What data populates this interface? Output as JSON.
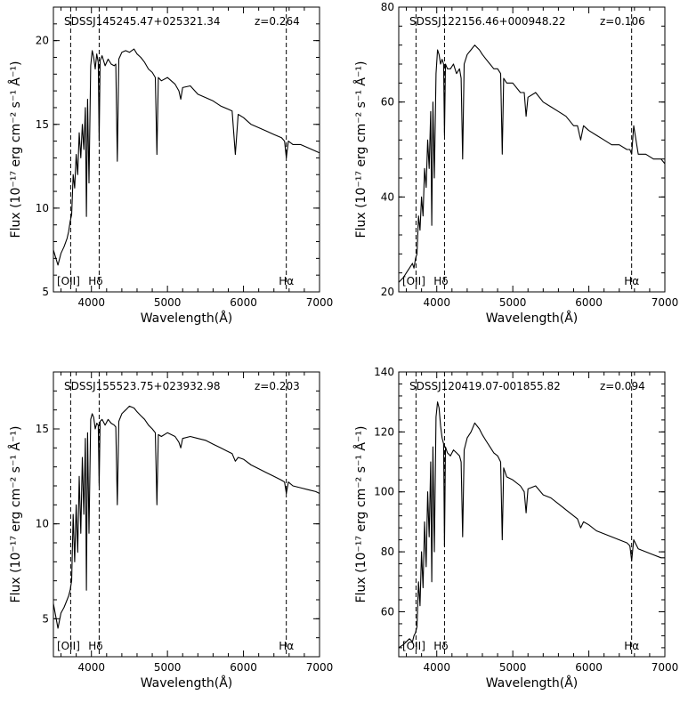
{
  "figure": {
    "xlabel": "Wavelength(Å)",
    "ylabel": "Flux (10⁻¹⁷ erg cm⁻² s⁻¹ Å⁻¹)"
  },
  "chart_data": [
    {
      "type": "line",
      "title": "SDSSJ145245.47+025321.34",
      "redshift": "z=0.264",
      "xlabel": "Wavelength(Å)",
      "ylabel": "Flux (10⁻¹⁷ erg cm⁻² s⁻¹ Å⁻¹)",
      "xlim": [
        3500,
        7000
      ],
      "ylim": [
        5,
        22
      ],
      "xticks": [
        4000,
        5000,
        6000,
        7000
      ],
      "yticks": [
        5,
        10,
        15,
        20
      ],
      "line_markers": [
        {
          "label": "[OII]",
          "x": 3727
        },
        {
          "label": "Hδ",
          "x": 4102
        },
        {
          "label": "Hα",
          "x": 6563
        }
      ],
      "series": [
        {
          "x": [
            3500,
            3560,
            3600,
            3640,
            3680,
            3700,
            3720,
            3740,
            3760,
            3780,
            3800,
            3820,
            3840,
            3860,
            3880,
            3900,
            3920,
            3934,
            3950,
            3968,
            3990,
            4010,
            4030,
            4050,
            4070,
            4090,
            4102,
            4115,
            4140,
            4180,
            4220,
            4260,
            4300,
            4320,
            4340,
            4360,
            4400,
            4450,
            4500,
            4560,
            4600,
            4650,
            4700,
            4750,
            4800,
            4840,
            4861,
            4880,
            4920,
            5000,
            5100,
            5150,
            5175,
            5200,
            5300,
            5400,
            5500,
            5600,
            5700,
            5800,
            5850,
            5893,
            5930,
            6000,
            6100,
            6200,
            6300,
            6400,
            6500,
            6540,
            6563,
            6590,
            6650,
            6750,
            6850,
            6950,
            7000
          ],
          "y": [
            7.5,
            6.6,
            7.3,
            7.7,
            8.2,
            8.6,
            9.2,
            9.6,
            12.0,
            11.2,
            13.2,
            12.0,
            14.5,
            13.0,
            15.0,
            13.5,
            16.0,
            9.5,
            16.5,
            11.5,
            18.5,
            19.4,
            19.0,
            18.3,
            19.2,
            18.7,
            14.0,
            18.8,
            19.1,
            18.5,
            18.9,
            18.6,
            18.5,
            18.6,
            12.8,
            18.9,
            19.3,
            19.4,
            19.3,
            19.5,
            19.2,
            19.0,
            18.7,
            18.3,
            18.1,
            17.8,
            13.2,
            17.8,
            17.6,
            17.8,
            17.4,
            17.0,
            16.5,
            17.2,
            17.3,
            16.8,
            16.6,
            16.4,
            16.1,
            15.9,
            15.8,
            13.2,
            15.6,
            15.4,
            15.0,
            14.8,
            14.6,
            14.4,
            14.2,
            14.0,
            13.0,
            14.0,
            13.8,
            13.8,
            13.6,
            13.4,
            13.3
          ]
        }
      ]
    },
    {
      "type": "line",
      "title": "SDSSJ122156.46+000948.22",
      "redshift": "z=0.106",
      "xlabel": "Wavelength(Å)",
      "ylabel": "Flux (10⁻¹⁷ erg cm⁻² s⁻¹ Å⁻¹)",
      "xlim": [
        3500,
        7000
      ],
      "ylim": [
        20,
        80
      ],
      "xticks": [
        4000,
        5000,
        6000,
        7000
      ],
      "yticks": [
        20,
        40,
        60,
        80
      ],
      "line_markers": [
        {
          "label": "[OII]",
          "x": 3727
        },
        {
          "label": "Hδ",
          "x": 4102
        },
        {
          "label": "Hα",
          "x": 6563
        }
      ],
      "series": [
        {
          "x": [
            3500,
            3560,
            3600,
            3640,
            3680,
            3700,
            3720,
            3740,
            3760,
            3780,
            3800,
            3820,
            3840,
            3860,
            3880,
            3900,
            3920,
            3934,
            3950,
            3968,
            3990,
            4010,
            4030,
            4050,
            4070,
            4090,
            4102,
            4115,
            4140,
            4180,
            4220,
            4260,
            4300,
            4320,
            4340,
            4360,
            4400,
            4450,
            4500,
            4560,
            4600,
            4650,
            4700,
            4750,
            4800,
            4840,
            4861,
            4880,
            4920,
            5000,
            5100,
            5150,
            5175,
            5200,
            5300,
            5400,
            5500,
            5600,
            5700,
            5800,
            5850,
            5893,
            5930,
            6000,
            6100,
            6200,
            6300,
            6400,
            6500,
            6540,
            6563,
            6590,
            6650,
            6750,
            6850,
            6950,
            7000
          ],
          "y": [
            22,
            23,
            24,
            25,
            26,
            25,
            27,
            28,
            36,
            33,
            40,
            36,
            46,
            42,
            52,
            46,
            58,
            34,
            60,
            44,
            66,
            71,
            70,
            68,
            69,
            68,
            53,
            68,
            67,
            67,
            68,
            66,
            67,
            65,
            48,
            68,
            70,
            71,
            72,
            71,
            70,
            69,
            68,
            67,
            67,
            66,
            49,
            65,
            64,
            64,
            62,
            62,
            57,
            61,
            62,
            60,
            59,
            58,
            57,
            55,
            55,
            52,
            55,
            54,
            53,
            52,
            51,
            51,
            50,
            50,
            49,
            55,
            49,
            49,
            48,
            48,
            47
          ]
        }
      ]
    },
    {
      "type": "line",
      "title": "SDSSJ155523.75+023932.98",
      "redshift": "z=0.203",
      "xlabel": "Wavelength(Å)",
      "ylabel": "Flux (10⁻¹⁷ erg cm⁻² s⁻¹ Å⁻¹)",
      "xlim": [
        3500,
        7000
      ],
      "ylim": [
        3,
        18
      ],
      "xticks": [
        4000,
        5000,
        6000,
        7000
      ],
      "yticks": [
        5,
        10,
        15
      ],
      "line_markers": [
        {
          "label": "[OII]",
          "x": 3727
        },
        {
          "label": "Hδ",
          "x": 4102
        },
        {
          "label": "Hα",
          "x": 6563
        }
      ],
      "series": [
        {
          "x": [
            3500,
            3560,
            3600,
            3640,
            3680,
            3700,
            3720,
            3740,
            3760,
            3780,
            3800,
            3820,
            3840,
            3860,
            3880,
            3900,
            3920,
            3934,
            3950,
            3968,
            3990,
            4010,
            4030,
            4050,
            4070,
            4090,
            4102,
            4115,
            4140,
            4180,
            4220,
            4260,
            4300,
            4320,
            4340,
            4360,
            4400,
            4450,
            4500,
            4560,
            4600,
            4650,
            4700,
            4750,
            4800,
            4840,
            4861,
            4880,
            4920,
            5000,
            5100,
            5150,
            5175,
            5200,
            5300,
            5400,
            5500,
            5600,
            5700,
            5800,
            5850,
            5893,
            5930,
            6000,
            6100,
            6200,
            6300,
            6400,
            6500,
            6540,
            6563,
            6590,
            6650,
            6750,
            6850,
            6950,
            7000
          ],
          "y": [
            5.8,
            4.5,
            5.3,
            5.6,
            6.0,
            6.2,
            6.5,
            7.0,
            10.5,
            8.0,
            11.0,
            8.5,
            12.5,
            9.5,
            13.5,
            10.5,
            14.5,
            6.5,
            14.8,
            9.5,
            15.5,
            15.8,
            15.6,
            15.0,
            15.3,
            15.2,
            12.0,
            15.4,
            15.5,
            15.2,
            15.5,
            15.3,
            15.2,
            15.1,
            11.0,
            15.4,
            15.8,
            16.0,
            16.2,
            16.1,
            15.9,
            15.7,
            15.5,
            15.2,
            15.0,
            14.8,
            11.0,
            14.7,
            14.6,
            14.8,
            14.6,
            14.3,
            14.0,
            14.5,
            14.6,
            14.5,
            14.4,
            14.2,
            14.0,
            13.8,
            13.7,
            13.3,
            13.5,
            13.4,
            13.1,
            12.9,
            12.7,
            12.5,
            12.3,
            12.2,
            11.6,
            12.2,
            12.0,
            11.9,
            11.8,
            11.7,
            11.6
          ]
        }
      ]
    },
    {
      "type": "line",
      "title": "SDSSJ120419.07-001855.82",
      "redshift": "z=0.094",
      "xlabel": "Wavelength(Å)",
      "ylabel": "Flux (10⁻¹⁷ erg cm⁻² s⁻¹ Å⁻¹)",
      "xlim": [
        3500,
        7000
      ],
      "ylim": [
        45,
        140
      ],
      "xticks": [
        4000,
        5000,
        6000,
        7000
      ],
      "yticks": [
        60,
        80,
        100,
        120,
        140
      ],
      "line_markers": [
        {
          "label": "[OII]",
          "x": 3727
        },
        {
          "label": "Hδ",
          "x": 4102
        },
        {
          "label": "Hα",
          "x": 6563
        }
      ],
      "series": [
        {
          "x": [
            3500,
            3560,
            3600,
            3640,
            3680,
            3700,
            3720,
            3740,
            3760,
            3780,
            3800,
            3820,
            3840,
            3860,
            3880,
            3900,
            3920,
            3934,
            3950,
            3968,
            3990,
            4010,
            4030,
            4050,
            4070,
            4090,
            4102,
            4115,
            4140,
            4180,
            4220,
            4260,
            4300,
            4320,
            4340,
            4360,
            4400,
            4450,
            4500,
            4560,
            4600,
            4650,
            4700,
            4750,
            4800,
            4840,
            4861,
            4880,
            4920,
            5000,
            5100,
            5150,
            5175,
            5200,
            5300,
            5400,
            5500,
            5600,
            5700,
            5800,
            5850,
            5893,
            5930,
            6000,
            6100,
            6200,
            6300,
            6400,
            6500,
            6540,
            6563,
            6590,
            6650,
            6750,
            6850,
            6950,
            7000
          ],
          "y": [
            48,
            49,
            50,
            51,
            50,
            52,
            53,
            55,
            70,
            62,
            80,
            68,
            90,
            75,
            100,
            85,
            110,
            70,
            115,
            80,
            125,
            130,
            128,
            122,
            118,
            116,
            82,
            115,
            113,
            112,
            114,
            113,
            112,
            110,
            85,
            114,
            118,
            120,
            123,
            121,
            119,
            117,
            115,
            113,
            112,
            110,
            84,
            108,
            105,
            104,
            102,
            100,
            93,
            101,
            102,
            99,
            98,
            96,
            94,
            92,
            91,
            88,
            90,
            89,
            87,
            86,
            85,
            84,
            83,
            82,
            77,
            84,
            81,
            80,
            79,
            78,
            78
          ]
        }
      ]
    }
  ]
}
